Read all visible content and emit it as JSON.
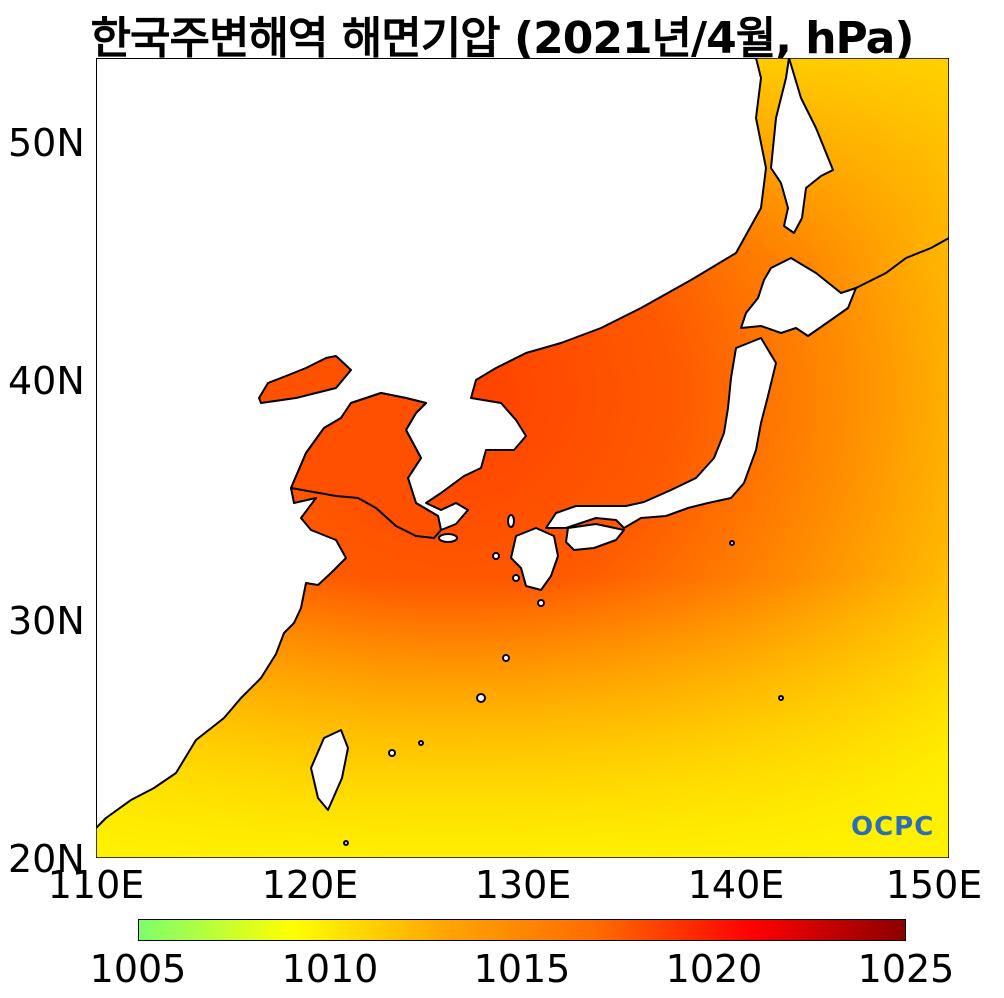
{
  "title": "한국주변해역 해면기압 (2021년/4월, hPa)",
  "axes": {
    "lat_labels": [
      "50N",
      "40N",
      "30N",
      "20N"
    ],
    "lon_labels": [
      "110E",
      "120E",
      "130E",
      "140E",
      "150E"
    ],
    "lat_range": [
      20,
      53.5
    ],
    "lon_range": [
      110,
      150
    ]
  },
  "colorbar": {
    "labels": [
      "1005",
      "1010",
      "1015",
      "1020",
      "1025"
    ],
    "range": [
      1005,
      1025
    ],
    "colormap": [
      "#7cff6b",
      "#ffff00",
      "#ffa500",
      "#ff6a00",
      "#ff0000",
      "#8b0000"
    ]
  },
  "logo": "OCPC",
  "colors": {
    "land": "#ffffff",
    "coast": "#000000",
    "sea_high": "#ff4a00",
    "sea_low": "#ffee00"
  }
}
